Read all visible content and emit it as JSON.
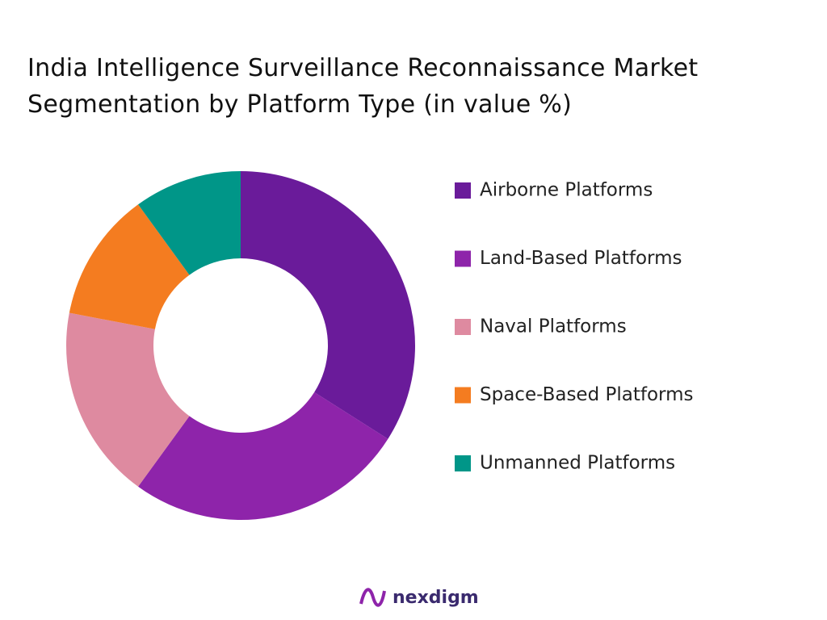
{
  "chart_data": {
    "type": "donut",
    "title": "India Intelligence Surveillance Reconnaissance Market Segmentation by Platform Type (in value %)",
    "categories": [
      "Airborne Platforms",
      "Land-Based Platforms",
      "Naval Platforms",
      "Space-Based Platforms",
      "Unmanned Platforms"
    ],
    "values": [
      34,
      26,
      18,
      12,
      10
    ],
    "colors": [
      "#6a1b9a",
      "#8e24aa",
      "#de8aa0",
      "#f47c20",
      "#009688"
    ],
    "legend": "right"
  },
  "logo": "nexdigm"
}
